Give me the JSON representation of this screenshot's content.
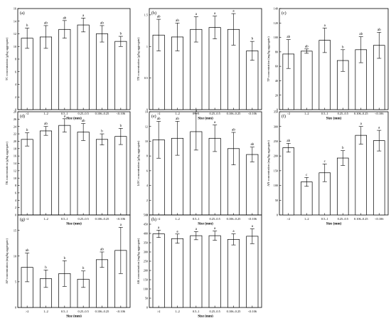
{
  "figure": {
    "xlabel": "Size (mm)",
    "categories": [
      ">2",
      "1–2",
      "0.5–1",
      "0.25–0.5",
      "0.106–0.25",
      "<0.106"
    ]
  },
  "chart_data": [
    {
      "panel": "(a)",
      "type": "bar",
      "categories": [
        ">2",
        "1–2",
        "0.5–1",
        "0.25–0.5",
        "0.106–0.25",
        "<0.106"
      ],
      "values": [
        11.3,
        11.5,
        12.7,
        13.4,
        12.0,
        10.8
      ],
      "errors": [
        1.6,
        1.8,
        1.4,
        1.1,
        1.3,
        0.8
      ],
      "letters": [
        "b",
        "ab",
        "ab",
        "a",
        "ab",
        "b"
      ],
      "ylabel": "TC concentration (g/kg aggregate)",
      "ylim": [
        0,
        16
      ],
      "yticks": [
        0,
        2,
        4,
        6,
        8,
        10,
        12,
        14,
        16
      ],
      "xlabel": "Size (mm)"
    },
    {
      "panel": "(b)",
      "type": "bar",
      "categories": [
        ">2",
        "1–2",
        "0.5–1",
        "0.25–0.5",
        "0.106–0.25",
        "<0.106"
      ],
      "values": [
        1.18,
        1.15,
        1.27,
        1.3,
        1.27,
        0.93
      ],
      "errors": [
        0.25,
        0.22,
        0.2,
        0.18,
        0.25,
        0.15
      ],
      "letters": [
        "ab",
        "ab",
        "a",
        "a",
        "a",
        "b"
      ],
      "ylabel": "TN concentration (g/kg aggregate)",
      "ylim": [
        0,
        1.6
      ],
      "yticks": [
        0.0,
        0.5,
        1.0,
        1.5
      ],
      "xlabel": "Size (mm)"
    },
    {
      "panel": "(c)",
      "type": "bar",
      "categories": [
        ">2",
        "1–2",
        "0.5–1",
        "0.25–0.5",
        "0.106–0.25",
        "<0.106"
      ],
      "values": [
        77,
        81,
        96,
        68,
        83,
        89
      ],
      "errors": [
        20,
        3,
        17,
        15,
        18,
        18
      ],
      "letters": [
        "ab",
        "ab",
        "a",
        "b",
        "ab",
        "ab"
      ],
      "ylabel": "TP concentration (mg/kg aggregate)",
      "ylim": [
        0,
        140
      ],
      "yticks": [
        0,
        20,
        40,
        60,
        80,
        100,
        120,
        140
      ],
      "xlabel": "Size (mm)"
    },
    {
      "panel": "(d)",
      "type": "bar",
      "categories": [
        ">2",
        "1–2",
        "0.5–1",
        "0.25–0.5",
        "0.106–0.25",
        "<0.106"
      ],
      "values": [
        20.5,
        22.8,
        24.3,
        22.5,
        20.5,
        21.3
      ],
      "errors": [
        1.8,
        1.2,
        1.8,
        2.3,
        1.5,
        2.2
      ],
      "letters": [
        "b",
        "ab",
        "a",
        "ab",
        "b",
        "b"
      ],
      "ylabel": "TK concentration (g/kg aggregate)",
      "ylim": [
        0,
        28
      ],
      "yticks": [
        0,
        2,
        4,
        6,
        8,
        10,
        12,
        14,
        16,
        18,
        20,
        22,
        24,
        26,
        28
      ],
      "xlabel": "Size (mm)"
    },
    {
      "panel": "(e)",
      "type": "bar",
      "categories": [
        ">2",
        "1–2",
        "0.5–1",
        "0.25–0.5",
        "0.106–0.25",
        "<0.106"
      ],
      "values": [
        10.2,
        10.4,
        11.3,
        10.4,
        9.0,
        8.2
      ],
      "errors": [
        2.5,
        2.3,
        2.5,
        1.8,
        2.2,
        1.0
      ],
      "letters": [
        "ab",
        "ab",
        "a",
        "a",
        "ab",
        "ab"
      ],
      "ylabel": "LOC concentration (g/kg aggregate)",
      "ylim": [
        0,
        14
      ],
      "yticks": [
        0,
        2,
        4,
        6,
        8,
        10,
        12,
        14
      ],
      "xlabel": "Size (mm)"
    },
    {
      "panel": "(f)",
      "type": "bar",
      "categories": [
        ">2",
        "1–2",
        "0.5–1",
        "0.25–0.5",
        "0.106–0.25",
        "<0.106"
      ],
      "values": [
        228,
        112,
        143,
        193,
        270,
        252
      ],
      "errors": [
        15,
        15,
        30,
        25,
        30,
        35
      ],
      "letters": [
        "ab",
        "c",
        "c",
        "b",
        "a",
        "a"
      ],
      "ylabel": "AN concentration (mg/kg aggregate)",
      "ylim": [
        0,
        350
      ],
      "yticks": [
        0,
        50,
        100,
        150,
        200,
        250,
        300,
        350
      ],
      "xlabel": "Size (mm)"
    },
    {
      "panel": "(g)",
      "type": "bar",
      "categories": [
        ">2",
        "1–2",
        "0.5–1",
        "0.25–0.5",
        "0.106–0.25",
        "<0.106"
      ],
      "values": [
        7.8,
        5.6,
        6.6,
        5.5,
        9.3,
        11.1
      ],
      "errors": [
        2.8,
        1.7,
        2.5,
        1.6,
        1.5,
        4.5
      ],
      "letters": [
        "ab",
        "b",
        "b",
        "b",
        "ab",
        "a"
      ],
      "ylabel": "AP concentration (mg/kg aggregate)",
      "ylim": [
        0,
        18
      ],
      "yticks": [
        0,
        5,
        10,
        15
      ],
      "xlabel": "Size (mm)"
    },
    {
      "panel": "(h)",
      "type": "bar",
      "categories": [
        ">2",
        "1–2",
        "0.5–1",
        "0.25–0.5",
        "0.106–0.25",
        "<0.106"
      ],
      "values": [
        398,
        372,
        388,
        388,
        368,
        385
      ],
      "errors": [
        20,
        25,
        22,
        25,
        30,
        40
      ],
      "letters": [
        "a",
        "a",
        "a",
        "a",
        "a",
        "a"
      ],
      "ylabel": "AK concentration (mg/kg aggregate)",
      "ylim": [
        0,
        500
      ],
      "yticks": [
        0,
        50,
        100,
        150,
        200,
        250,
        300,
        350,
        400,
        450,
        500
      ],
      "xlabel": "Size (mm)"
    }
  ]
}
